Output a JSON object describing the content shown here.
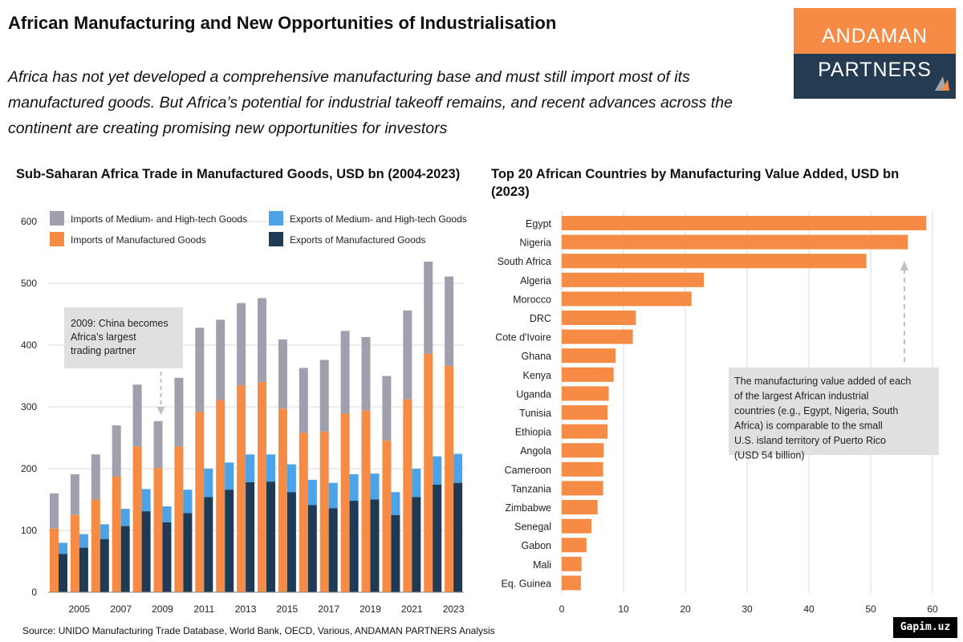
{
  "header": {
    "title": "African Manufacturing and New Opportunities of Industrialisation",
    "subtitle": "Africa has not yet developed a comprehensive manufacturing base and must still import most of its manufactured goods. But Africa’s potential for industrial takeoff remains, and recent advances across the continent are creating promising new opportunities for investors"
  },
  "logo": {
    "line1": "ANDAMAN",
    "line2": "PARTNERS"
  },
  "colors": {
    "imports_mh": "#a09fad",
    "imports_mfg": "#f58b45",
    "exports_mh": "#4da3e8",
    "exports_mfg": "#1f3a55",
    "bar_orange": "#f58b45",
    "annotation_bg": "#e0e0e0"
  },
  "chart_data": [
    {
      "type": "bar",
      "title": "Sub-Saharan Africa Trade in Manufactured Goods, USD bn (2004-2023)",
      "years": [
        2004,
        2005,
        2006,
        2007,
        2008,
        2009,
        2010,
        2011,
        2012,
        2013,
        2014,
        2015,
        2016,
        2017,
        2018,
        2019,
        2020,
        2021,
        2022,
        2023
      ],
      "x_tick_labels": [
        "2005",
        "2007",
        "2009",
        "2011",
        "2013",
        "2015",
        "2017",
        "2019",
        "2021",
        "2023"
      ],
      "series": [
        {
          "name": "Imports of Manufactured Goods",
          "values": [
            103,
            125,
            150,
            187,
            236,
            201,
            236,
            292,
            311,
            335,
            340,
            297,
            258,
            260,
            289,
            294,
            245,
            312,
            386,
            366
          ]
        },
        {
          "name": "Imports of Medium- and High-tech Goods",
          "values": [
            160,
            191,
            223,
            270,
            336,
            277,
            347,
            428,
            441,
            468,
            476,
            409,
            363,
            376,
            423,
            413,
            350,
            456,
            535,
            511
          ]
        },
        {
          "name": "Exports of Manufactured Goods",
          "values": [
            62,
            72,
            86,
            107,
            131,
            113,
            128,
            154,
            166,
            178,
            179,
            162,
            141,
            136,
            148,
            150,
            125,
            154,
            174,
            177
          ]
        },
        {
          "name": "Exports of Medium- and High-tech Goods",
          "values": [
            80,
            94,
            110,
            135,
            167,
            139,
            166,
            200,
            210,
            223,
            223,
            207,
            182,
            177,
            191,
            192,
            162,
            200,
            220,
            224
          ]
        }
      ],
      "ylim": [
        0,
        600
      ],
      "yticks": [
        0,
        100,
        200,
        300,
        400,
        500,
        600
      ],
      "legend": [
        {
          "label": "Imports of Medium- and High-tech Goods",
          "color": "#a09fad"
        },
        {
          "label": "Exports of Medium- and High-tech Goods",
          "color": "#4da3e8"
        },
        {
          "label": "Imports of Manufactured Goods",
          "color": "#f58b45"
        },
        {
          "label": "Exports of Manufactured Goods",
          "color": "#1f3a55"
        }
      ],
      "annotation": "2009: China becomes Africa’s largest trading partner"
    },
    {
      "type": "bar",
      "orientation": "horizontal",
      "title": "Top 20 African Countries by Manufacturing Value Added, USD bn (2023)",
      "categories": [
        "Egypt",
        "Nigeria",
        "South Africa",
        "Algeria",
        "Morocco",
        "DRC",
        "Cote d'Ivoire",
        "Ghana",
        "Kenya",
        "Uganda",
        "Tunisia",
        "Ethiopia",
        "Angola",
        "Cameroon",
        "Tanzania",
        "Zimbabwe",
        "Senegal",
        "Gabon",
        "Mali",
        "Eq. Guinea"
      ],
      "values": [
        59,
        56,
        49.3,
        23,
        21,
        12,
        11.5,
        8.7,
        8.4,
        7.6,
        7.4,
        7.4,
        6.8,
        6.7,
        6.7,
        5.8,
        4.8,
        4,
        3.2,
        3.1
      ],
      "xlim": [
        0,
        60
      ],
      "xticks": [
        0,
        10,
        20,
        30,
        40,
        50,
        60
      ],
      "annotation": "The manufacturing value added of each of the largest African industrial countries (e.g., Egypt, Nigeria, South Africa) is comparable to the small U.S. island territory of Puerto Rico (USD 54 billion)"
    }
  ],
  "source": "Source: UNIDO Manufacturing Trade Database, World Bank, OECD, Various, ANDAMAN PARTNERS Analysis",
  "watermark": "Gapim.uz"
}
